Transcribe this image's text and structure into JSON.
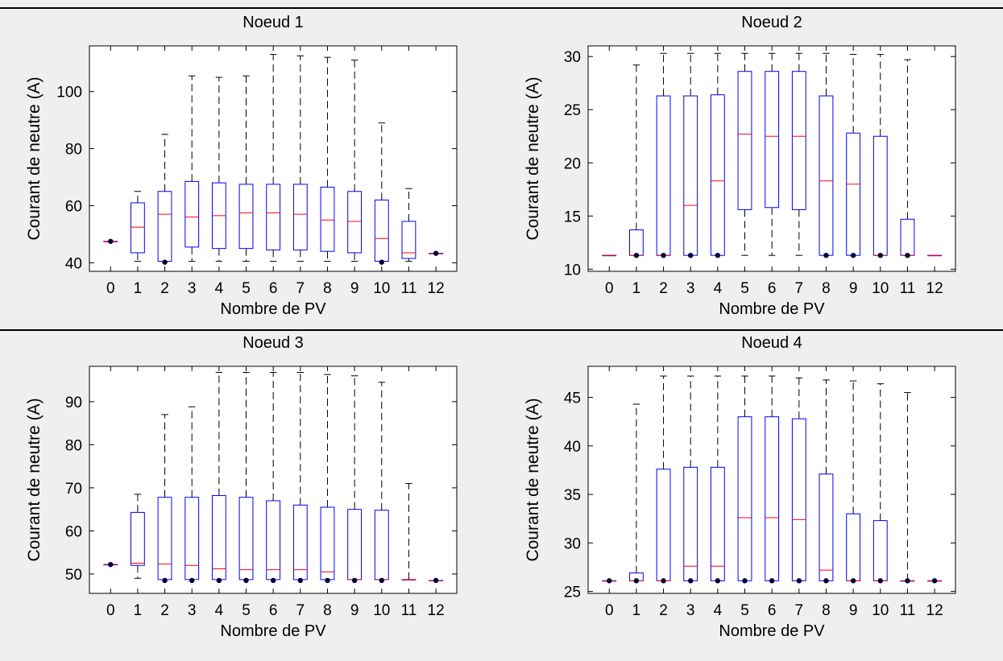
{
  "figure": {
    "background": "#efefef",
    "box_color": "#0000ff",
    "median_color": "#ff0000",
    "whisker_color": "#000000",
    "outlier_color": "#000033"
  },
  "chart_data": [
    {
      "type": "box",
      "title": "Noeud 1",
      "xlabel": "Nombre de PV",
      "ylabel": "Courant de neutre (A)",
      "categories": [
        "0",
        "1",
        "2",
        "3",
        "4",
        "5",
        "6",
        "7",
        "8",
        "9",
        "10",
        "11",
        "12"
      ],
      "ylim": [
        37,
        116
      ],
      "yticks": [
        40,
        60,
        80,
        100
      ],
      "boxes": [
        {
          "whislo": 47.5,
          "q1": 47.5,
          "med": 47.5,
          "q3": 47.5,
          "whishi": 47.5,
          "fliers": [
            47.5
          ]
        },
        {
          "whislo": 40.5,
          "q1": 43.5,
          "med": 52.5,
          "q3": 61,
          "whishi": 65,
          "fliers": []
        },
        {
          "whislo": 40.5,
          "q1": 40.5,
          "med": 57,
          "q3": 65,
          "whishi": 85,
          "fliers": [
            40.2
          ]
        },
        {
          "whislo": 40.5,
          "q1": 45.5,
          "med": 56,
          "q3": 68.5,
          "whishi": 105.5,
          "fliers": []
        },
        {
          "whislo": 40.5,
          "q1": 45,
          "med": 56.5,
          "q3": 68,
          "whishi": 105,
          "fliers": []
        },
        {
          "whislo": 40.5,
          "q1": 45,
          "med": 57.5,
          "q3": 67.5,
          "whishi": 105.5,
          "fliers": []
        },
        {
          "whislo": 40.5,
          "q1": 44.5,
          "med": 57.5,
          "q3": 67.5,
          "whishi": 113,
          "fliers": []
        },
        {
          "whislo": 40.5,
          "q1": 44.5,
          "med": 57,
          "q3": 67.5,
          "whishi": 112.5,
          "fliers": []
        },
        {
          "whislo": 40.5,
          "q1": 44,
          "med": 55,
          "q3": 66.5,
          "whishi": 112,
          "fliers": []
        },
        {
          "whislo": 40.5,
          "q1": 43.5,
          "med": 54.5,
          "q3": 65,
          "whishi": 111,
          "fliers": []
        },
        {
          "whislo": 40.5,
          "q1": 40.5,
          "med": 48.5,
          "q3": 62,
          "whishi": 89,
          "fliers": [
            40.2
          ]
        },
        {
          "whislo": 40.5,
          "q1": 41.5,
          "med": 43.5,
          "q3": 54.5,
          "whishi": 66,
          "fliers": []
        },
        {
          "whislo": 43.3,
          "q1": 43.3,
          "med": 43.3,
          "q3": 43.3,
          "whishi": 43.3,
          "fliers": [
            43.3
          ]
        }
      ]
    },
    {
      "type": "box",
      "title": "Noeud 2",
      "xlabel": "Nombre de PV",
      "ylabel": "Courant de neutre (A)",
      "categories": [
        "0",
        "1",
        "2",
        "3",
        "4",
        "5",
        "6",
        "7",
        "8",
        "9",
        "10",
        "11",
        "12"
      ],
      "ylim": [
        9.8,
        31
      ],
      "yticks": [
        10,
        15,
        20,
        25,
        30
      ],
      "boxes": [
        {
          "whislo": 11.3,
          "q1": 11.3,
          "med": 11.3,
          "q3": 11.3,
          "whishi": 11.3,
          "fliers": []
        },
        {
          "whislo": 11.3,
          "q1": 11.3,
          "med": 11.3,
          "q3": 13.7,
          "whishi": 29.2,
          "fliers": [
            11.3
          ]
        },
        {
          "whislo": 11.3,
          "q1": 11.3,
          "med": 11.3,
          "q3": 26.3,
          "whishi": 30.3,
          "fliers": [
            11.3
          ]
        },
        {
          "whislo": 11.3,
          "q1": 11.3,
          "med": 16,
          "q3": 26.3,
          "whishi": 30.3,
          "fliers": [
            11.3
          ]
        },
        {
          "whislo": 11.3,
          "q1": 11.3,
          "med": 18.3,
          "q3": 26.4,
          "whishi": 30.3,
          "fliers": [
            11.3
          ]
        },
        {
          "whislo": 11.3,
          "q1": 15.6,
          "med": 22.7,
          "q3": 28.6,
          "whishi": 30.3,
          "fliers": []
        },
        {
          "whislo": 11.3,
          "q1": 15.8,
          "med": 22.5,
          "q3": 28.6,
          "whishi": 30.3,
          "fliers": []
        },
        {
          "whislo": 11.3,
          "q1": 15.6,
          "med": 22.5,
          "q3": 28.6,
          "whishi": 30.3,
          "fliers": []
        },
        {
          "whislo": 11.3,
          "q1": 11.3,
          "med": 18.3,
          "q3": 26.3,
          "whishi": 30.3,
          "fliers": [
            11.3
          ]
        },
        {
          "whislo": 11.3,
          "q1": 11.3,
          "med": 18,
          "q3": 22.8,
          "whishi": 30.2,
          "fliers": [
            11.3
          ]
        },
        {
          "whislo": 11.3,
          "q1": 11.3,
          "med": 11.3,
          "q3": 22.5,
          "whishi": 30.2,
          "fliers": [
            11.3
          ]
        },
        {
          "whislo": 11.3,
          "q1": 11.3,
          "med": 11.3,
          "q3": 14.7,
          "whishi": 29.7,
          "fliers": [
            11.3
          ]
        },
        {
          "whislo": 11.3,
          "q1": 11.3,
          "med": 11.3,
          "q3": 11.3,
          "whishi": 11.3,
          "fliers": []
        }
      ]
    },
    {
      "type": "box",
      "title": "Noeud 3",
      "xlabel": "Nombre de PV",
      "ylabel": "Courant de neutre (A)",
      "categories": [
        "0",
        "1",
        "2",
        "3",
        "4",
        "5",
        "6",
        "7",
        "8",
        "9",
        "10",
        "11",
        "12"
      ],
      "ylim": [
        45.5,
        98.2
      ],
      "yticks": [
        50,
        60,
        70,
        80,
        90
      ],
      "boxes": [
        {
          "whislo": 52.2,
          "q1": 52.2,
          "med": 52.2,
          "q3": 52.2,
          "whishi": 52.2,
          "fliers": [
            52.2
          ]
        },
        {
          "whislo": 49,
          "q1": 52,
          "med": 52.5,
          "q3": 64.3,
          "whishi": 68.5,
          "fliers": []
        },
        {
          "whislo": 48.7,
          "q1": 48.7,
          "med": 52.3,
          "q3": 67.8,
          "whishi": 87,
          "fliers": [
            48.5
          ]
        },
        {
          "whislo": 48.7,
          "q1": 48.7,
          "med": 52,
          "q3": 67.8,
          "whishi": 88.8,
          "fliers": [
            48.5
          ]
        },
        {
          "whislo": 48.7,
          "q1": 48.7,
          "med": 51.2,
          "q3": 68.2,
          "whishi": 96.8,
          "fliers": [
            48.5
          ]
        },
        {
          "whislo": 48.7,
          "q1": 48.7,
          "med": 51,
          "q3": 67.8,
          "whishi": 96.8,
          "fliers": [
            48.5
          ]
        },
        {
          "whislo": 48.7,
          "q1": 48.7,
          "med": 51,
          "q3": 67,
          "whishi": 96.8,
          "fliers": [
            48.5
          ]
        },
        {
          "whislo": 48.7,
          "q1": 48.7,
          "med": 51,
          "q3": 66,
          "whishi": 96.8,
          "fliers": [
            48.5
          ]
        },
        {
          "whislo": 48.7,
          "q1": 48.7,
          "med": 50.5,
          "q3": 65.5,
          "whishi": 96.3,
          "fliers": [
            48.5
          ]
        },
        {
          "whislo": 48.7,
          "q1": 48.7,
          "med": 48.7,
          "q3": 65,
          "whishi": 96,
          "fliers": [
            48.5
          ]
        },
        {
          "whislo": 48.7,
          "q1": 48.7,
          "med": 48.7,
          "q3": 64.8,
          "whishi": 94.5,
          "fliers": [
            48.5
          ]
        },
        {
          "whislo": 48.7,
          "q1": 48.7,
          "med": 48.7,
          "q3": 48.7,
          "whishi": 71,
          "fliers": []
        },
        {
          "whislo": 48.5,
          "q1": 48.5,
          "med": 48.5,
          "q3": 48.5,
          "whishi": 48.5,
          "fliers": [
            48.5
          ]
        }
      ]
    },
    {
      "type": "box",
      "title": "Noeud 4",
      "xlabel": "Nombre de PV",
      "ylabel": "Courant de neutre (A)",
      "categories": [
        "0",
        "1",
        "2",
        "3",
        "4",
        "5",
        "6",
        "7",
        "8",
        "9",
        "10",
        "11",
        "12"
      ],
      "ylim": [
        24.8,
        48.2
      ],
      "yticks": [
        25,
        30,
        35,
        40,
        45
      ],
      "boxes": [
        {
          "whislo": 26.1,
          "q1": 26.1,
          "med": 26.1,
          "q3": 26.1,
          "whishi": 26.1,
          "fliers": [
            26.1
          ]
        },
        {
          "whislo": 26.1,
          "q1": 26.1,
          "med": 26.1,
          "q3": 26.9,
          "whishi": 44.3,
          "fliers": [
            26.1
          ]
        },
        {
          "whislo": 26.1,
          "q1": 26.1,
          "med": 26.1,
          "q3": 37.6,
          "whishi": 47.2,
          "fliers": [
            26.1
          ]
        },
        {
          "whislo": 26.1,
          "q1": 26.1,
          "med": 27.6,
          "q3": 37.8,
          "whishi": 47.2,
          "fliers": [
            26.1
          ]
        },
        {
          "whislo": 26.1,
          "q1": 26.1,
          "med": 27.6,
          "q3": 37.8,
          "whishi": 47.2,
          "fliers": [
            26.1
          ]
        },
        {
          "whislo": 26.1,
          "q1": 26.1,
          "med": 32.6,
          "q3": 43,
          "whishi": 47.2,
          "fliers": [
            26.1
          ]
        },
        {
          "whislo": 26.1,
          "q1": 26.1,
          "med": 32.6,
          "q3": 43,
          "whishi": 47.2,
          "fliers": [
            26.1
          ]
        },
        {
          "whislo": 26.1,
          "q1": 26.1,
          "med": 32.4,
          "q3": 42.8,
          "whishi": 47,
          "fliers": [
            26.1
          ]
        },
        {
          "whislo": 26.1,
          "q1": 26.1,
          "med": 27.2,
          "q3": 37.1,
          "whishi": 46.8,
          "fliers": [
            26.1
          ]
        },
        {
          "whislo": 26.1,
          "q1": 26.1,
          "med": 26.1,
          "q3": 33,
          "whishi": 46.7,
          "fliers": [
            26.1
          ]
        },
        {
          "whislo": 26.1,
          "q1": 26.1,
          "med": 26.1,
          "q3": 32.3,
          "whishi": 46.4,
          "fliers": [
            26.1
          ]
        },
        {
          "whislo": 26.1,
          "q1": 26.1,
          "med": 26.1,
          "q3": 26.1,
          "whishi": 45.5,
          "fliers": [
            26.1
          ]
        },
        {
          "whislo": 26.1,
          "q1": 26.1,
          "med": 26.1,
          "q3": 26.1,
          "whishi": 26.1,
          "fliers": [
            26.1
          ]
        }
      ]
    }
  ]
}
